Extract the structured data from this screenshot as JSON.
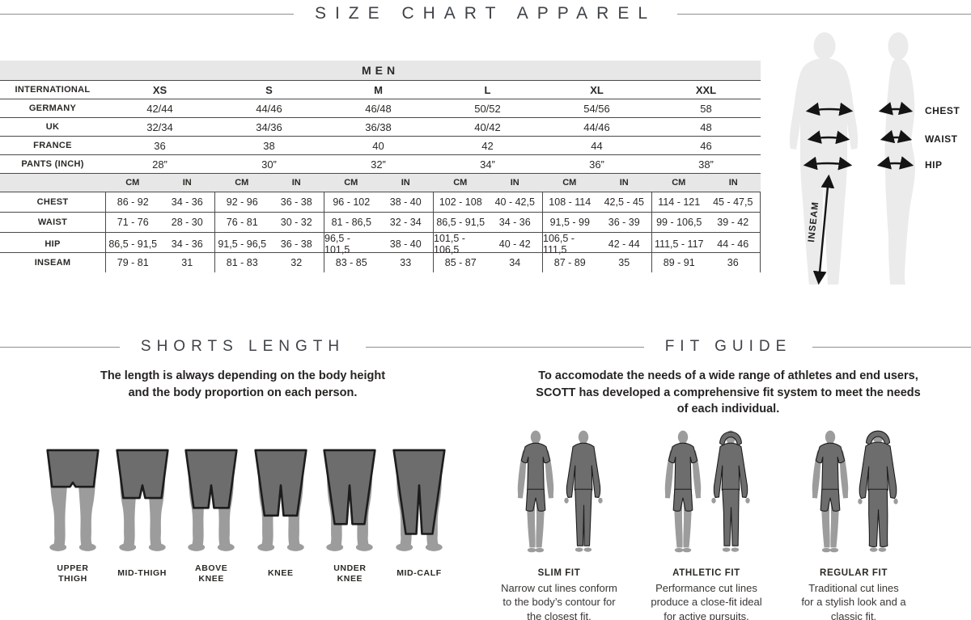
{
  "page_title": "SIZE CHART APPAREL",
  "colors": {
    "table_header_bg": "#e7e7e7",
    "table_line": "#4a4a4a",
    "text": "#2b2926",
    "silhouette_light": "#ebebeb",
    "figure_skin": "#9c9c9c",
    "figure_cloth": "#6d6d6d",
    "figure_outline": "#1c1c1c",
    "arrow": "#141414"
  },
  "size_table": {
    "gender_header": "MEN",
    "unit_cm": "CM",
    "unit_in": "IN",
    "top_rows": [
      {
        "label": "INTERNATIONAL",
        "values": [
          "XS",
          "S",
          "M",
          "L",
          "XL",
          "XXL"
        ],
        "bold": true
      },
      {
        "label": "GERMANY",
        "values": [
          "42/44",
          "44/46",
          "46/48",
          "50/52",
          "54/56",
          "58"
        ]
      },
      {
        "label": "UK",
        "values": [
          "32/34",
          "34/36",
          "36/38",
          "40/42",
          "44/46",
          "48"
        ]
      },
      {
        "label": "FRANCE",
        "values": [
          "36",
          "38",
          "40",
          "42",
          "44",
          "46"
        ]
      },
      {
        "label": "PANTS (INCH)",
        "values": [
          "28”",
          "30”",
          "32”",
          "34”",
          "36”",
          "38”"
        ]
      }
    ],
    "measure_rows": [
      {
        "label": "CHEST",
        "cm": [
          "86 - 92",
          "92 - 96",
          "96 - 102",
          "102 - 108",
          "108 - 114",
          "114 - 121"
        ],
        "in": [
          "34 - 36",
          "36 - 38",
          "38 - 40",
          "40 - 42,5",
          "42,5 - 45",
          "45 - 47,5"
        ]
      },
      {
        "label": "WAIST",
        "cm": [
          "71 - 76",
          "76 - 81",
          "81 - 86,5",
          "86,5 - 91,5",
          "91,5 - 99",
          "99 - 106,5"
        ],
        "in": [
          "28 - 30",
          "30 - 32",
          "32 - 34",
          "34 - 36",
          "36 - 39",
          "39 - 42"
        ]
      },
      {
        "label": "HIP",
        "cm": [
          "86,5 - 91,5",
          "91,5 - 96,5",
          "96,5 - 101,5",
          "101,5 - 106,5",
          "106,5 - 111,5",
          "111,5 - 117"
        ],
        "in": [
          "34 - 36",
          "36 - 38",
          "38 - 40",
          "40 - 42",
          "42 - 44",
          "44 - 46"
        ]
      },
      {
        "label": "INSEAM",
        "cm": [
          "79 - 81",
          "81 - 83",
          "83 - 85",
          "85 - 87",
          "87 - 89",
          "89 - 91"
        ],
        "in": [
          "31",
          "32",
          "33",
          "34",
          "35",
          "36"
        ]
      }
    ]
  },
  "body_diagram": {
    "chest_label": "CHEST",
    "waist_label": "WAIST",
    "hip_label": "HIP",
    "inseam_label": "INSEAM"
  },
  "shorts_section": {
    "title": "SHORTS LENGTH",
    "description_lines": [
      "The length is always depending on the body height",
      "and the body proportion on each person."
    ],
    "items": [
      {
        "label_lines": [
          "UPPER",
          "THIGH"
        ],
        "hem": 76
      },
      {
        "label_lines": [
          "MID-THIGH"
        ],
        "hem": 92
      },
      {
        "label_lines": [
          "ABOVE",
          "KNEE"
        ],
        "hem": 106
      },
      {
        "label_lines": [
          "KNEE"
        ],
        "hem": 117
      },
      {
        "label_lines": [
          "UNDER",
          "KNEE"
        ],
        "hem": 129
      },
      {
        "label_lines": [
          "MID-CALF"
        ],
        "hem": 143
      }
    ]
  },
  "fit_section": {
    "title": "FIT GUIDE",
    "description_lines": [
      "To accomodate the needs of a wide range of athletes and end users,",
      "SCOTT has developed a comprehensive fit system to meet the needs",
      "of each individual."
    ],
    "fits": [
      {
        "name": "SLIM FIT",
        "right_variant": "slim",
        "description_lines": [
          "Narrow cut lines conform",
          "to the body’s contour for",
          "the closest fit."
        ]
      },
      {
        "name": "ATHLETIC FIT",
        "right_variant": "hoodie",
        "description_lines": [
          "Performance cut lines",
          "produce a close-fit ideal",
          "for active pursuits."
        ]
      },
      {
        "name": "REGULAR FIT",
        "right_variant": "hoodie_loose",
        "description_lines": [
          "Traditional cut lines",
          "for a stylish look and a",
          "classic fit."
        ]
      }
    ]
  }
}
